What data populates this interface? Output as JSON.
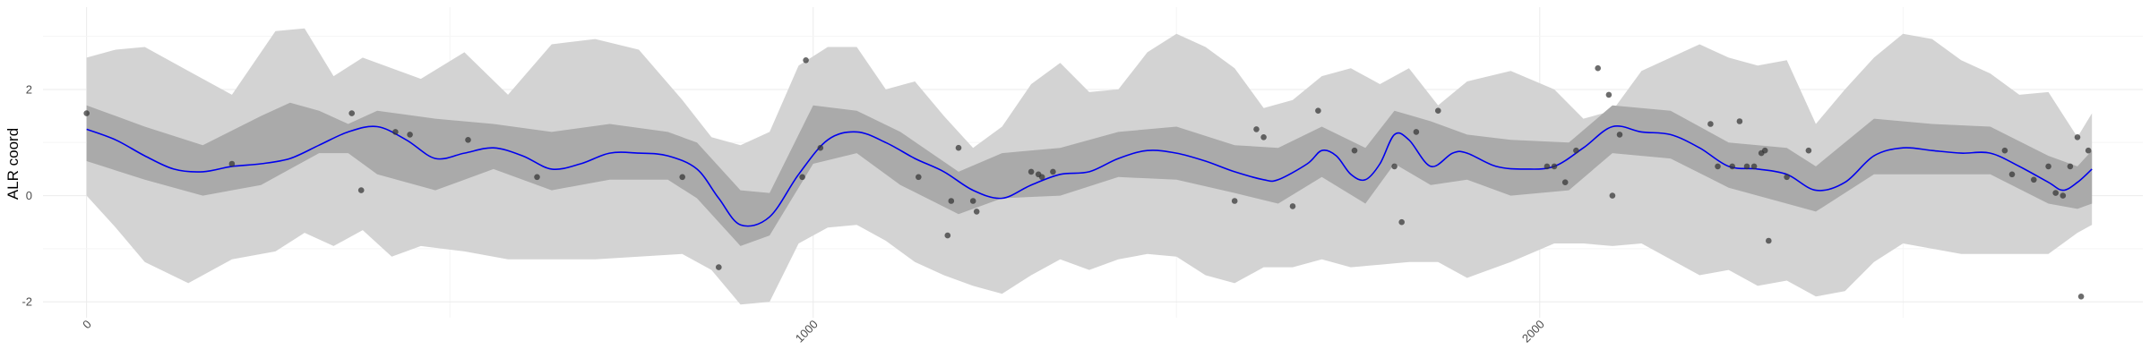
{
  "chart_data": {
    "type": "line",
    "title": "",
    "xlabel": "",
    "ylabel": "ALR coord",
    "xlim": [
      -60,
      2830
    ],
    "ylim": [
      -2.3,
      3.55
    ],
    "grid": true,
    "x_ticks": [
      0,
      1000,
      2000
    ],
    "x_tick_labels": [
      "0",
      "1000",
      "2000"
    ],
    "y_ticks": [
      -2,
      0,
      2
    ],
    "y_tick_labels": [
      "-2",
      "0",
      "2"
    ],
    "colors": {
      "mean": "#0000ee",
      "inner_band": "#aaaaaa",
      "outer_band": "#d3d3d3",
      "points": "#333333",
      "grid_major": "#ebebeb",
      "grid_minor": "#f5f5f5"
    },
    "mean_line": {
      "x": [
        0,
        40,
        80,
        120,
        160,
        200,
        240,
        280,
        320,
        360,
        400,
        440,
        480,
        520,
        560,
        600,
        640,
        680,
        720,
        760,
        800,
        840,
        870,
        900,
        940,
        980,
        1020,
        1060,
        1100,
        1140,
        1180,
        1220,
        1260,
        1300,
        1340,
        1380,
        1420,
        1460,
        1500,
        1540,
        1580,
        1620,
        1640,
        1680,
        1700,
        1720,
        1740,
        1760,
        1780,
        1800,
        1820,
        1850,
        1880,
        1900,
        1940,
        1980,
        2020,
        2060,
        2100,
        2140,
        2180,
        2220,
        2260,
        2300,
        2340,
        2380,
        2420,
        2460,
        2500,
        2540,
        2580,
        2620,
        2660,
        2700,
        2720,
        2740,
        2760
      ],
      "y": [
        1.25,
        1.05,
        0.75,
        0.5,
        0.45,
        0.55,
        0.6,
        0.7,
        0.95,
        1.2,
        1.3,
        1.05,
        0.7,
        0.8,
        0.9,
        0.75,
        0.5,
        0.6,
        0.8,
        0.8,
        0.75,
        0.5,
        -0.05,
        -0.55,
        -0.4,
        0.4,
        1.05,
        1.2,
        1.0,
        0.7,
        0.45,
        0.1,
        -0.05,
        0.2,
        0.4,
        0.45,
        0.7,
        0.85,
        0.8,
        0.65,
        0.45,
        0.3,
        0.3,
        0.6,
        0.85,
        0.75,
        0.4,
        0.3,
        0.6,
        1.15,
        1.05,
        0.55,
        0.8,
        0.8,
        0.55,
        0.5,
        0.55,
        0.9,
        1.3,
        1.2,
        1.15,
        0.9,
        0.55,
        0.5,
        0.4,
        0.1,
        0.25,
        0.75,
        0.9,
        0.85,
        0.8,
        0.8,
        0.55,
        0.25,
        0.1,
        0.25,
        0.5
      ]
    },
    "inner_band": {
      "x": [
        0,
        80,
        160,
        240,
        280,
        320,
        360,
        400,
        480,
        560,
        640,
        720,
        800,
        840,
        900,
        940,
        1000,
        1060,
        1120,
        1200,
        1260,
        1340,
        1420,
        1500,
        1580,
        1640,
        1700,
        1760,
        1800,
        1850,
        1900,
        1960,
        2040,
        2100,
        2180,
        2260,
        2340,
        2380,
        2460,
        2540,
        2620,
        2700,
        2740,
        2760
      ],
      "lower": [
        0.65,
        0.3,
        0.0,
        0.2,
        0.5,
        0.8,
        0.8,
        0.4,
        0.1,
        0.5,
        0.1,
        0.3,
        0.3,
        -0.05,
        -0.95,
        -0.75,
        0.6,
        0.8,
        0.2,
        -0.35,
        -0.05,
        0.0,
        0.35,
        0.3,
        0.05,
        -0.15,
        0.35,
        -0.15,
        0.6,
        0.2,
        0.3,
        0.0,
        0.1,
        0.8,
        0.7,
        0.15,
        -0.15,
        -0.3,
        0.4,
        0.4,
        0.4,
        -0.15,
        -0.25,
        -0.15
      ],
      "upper": [
        1.7,
        1.3,
        0.95,
        1.5,
        1.75,
        1.6,
        1.35,
        1.6,
        1.45,
        1.35,
        1.2,
        1.35,
        1.2,
        1.0,
        0.1,
        0.05,
        1.7,
        1.6,
        1.2,
        0.45,
        0.8,
        0.9,
        1.2,
        1.3,
        0.95,
        0.9,
        1.3,
        0.9,
        1.6,
        1.4,
        1.15,
        1.05,
        1.0,
        1.7,
        1.6,
        1.0,
        0.9,
        0.55,
        1.45,
        1.35,
        1.3,
        0.75,
        0.55,
        0.85
      ]
    },
    "outer_band": {
      "x": [
        0,
        40,
        80,
        140,
        200,
        260,
        300,
        340,
        380,
        420,
        460,
        520,
        580,
        640,
        700,
        760,
        820,
        860,
        900,
        940,
        980,
        1020,
        1060,
        1100,
        1140,
        1180,
        1220,
        1260,
        1300,
        1340,
        1380,
        1420,
        1460,
        1500,
        1540,
        1580,
        1620,
        1660,
        1700,
        1740,
        1780,
        1820,
        1860,
        1900,
        1960,
        2020,
        2060,
        2100,
        2140,
        2180,
        2220,
        2260,
        2300,
        2340,
        2380,
        2420,
        2460,
        2500,
        2540,
        2580,
        2620,
        2660,
        2700,
        2740,
        2760
      ],
      "lower": [
        0.0,
        -0.6,
        -1.25,
        -1.65,
        -1.2,
        -1.05,
        -0.7,
        -0.95,
        -0.65,
        -1.15,
        -0.95,
        -1.05,
        -1.2,
        -1.2,
        -1.2,
        -1.15,
        -1.1,
        -1.4,
        -2.05,
        -2.0,
        -0.9,
        -0.6,
        -0.55,
        -0.85,
        -1.25,
        -1.5,
        -1.7,
        -1.85,
        -1.5,
        -1.2,
        -1.4,
        -1.2,
        -1.1,
        -1.15,
        -1.5,
        -1.65,
        -1.35,
        -1.35,
        -1.2,
        -1.35,
        -1.3,
        -1.25,
        -1.25,
        -1.55,
        -1.25,
        -0.9,
        -0.9,
        -0.95,
        -0.9,
        -1.2,
        -1.5,
        -1.4,
        -1.7,
        -1.6,
        -1.9,
        -1.8,
        -1.25,
        -0.9,
        -1.0,
        -1.1,
        -1.1,
        -1.1,
        -1.1,
        -0.7,
        -0.55
      ],
      "upper": [
        2.6,
        2.75,
        2.8,
        2.35,
        1.9,
        3.1,
        3.15,
        2.25,
        2.6,
        2.4,
        2.2,
        2.7,
        1.9,
        2.85,
        2.95,
        2.75,
        1.8,
        1.1,
        0.95,
        1.2,
        2.45,
        2.8,
        2.8,
        2.0,
        2.15,
        1.5,
        0.9,
        1.3,
        2.1,
        2.5,
        1.95,
        2.0,
        2.7,
        3.05,
        2.8,
        2.4,
        1.65,
        1.8,
        2.25,
        2.4,
        2.1,
        2.4,
        1.7,
        2.15,
        2.35,
        2.0,
        1.45,
        1.6,
        2.35,
        2.6,
        2.85,
        2.6,
        2.45,
        2.55,
        1.35,
        2.0,
        2.6,
        3.05,
        2.95,
        2.55,
        2.3,
        1.9,
        1.95,
        1.1,
        1.55
      ]
    },
    "points": {
      "x": [
        0,
        200,
        365,
        378,
        425,
        445,
        525,
        620,
        820,
        870,
        985,
        990,
        1010,
        1145,
        1185,
        1190,
        1200,
        1220,
        1225,
        1300,
        1310,
        1315,
        1330,
        1580,
        1610,
        1620,
        1660,
        1695,
        1745,
        1800,
        1810,
        1830,
        1860,
        2010,
        2020,
        2035,
        2050,
        2080,
        2095,
        2100,
        2110,
        2235,
        2245,
        2265,
        2275,
        2285,
        2295,
        2305,
        2310,
        2315,
        2340,
        2370,
        2640,
        2650,
        2680,
        2700,
        2710,
        2720,
        2730,
        2740,
        2745,
        2755
      ],
      "y": [
        1.55,
        0.6,
        1.55,
        0.1,
        1.2,
        1.15,
        1.05,
        0.35,
        0.35,
        -1.35,
        0.35,
        2.55,
        0.9,
        0.35,
        -0.75,
        -0.1,
        0.9,
        -0.1,
        -0.3,
        0.45,
        0.4,
        0.35,
        0.45,
        -0.1,
        1.25,
        1.1,
        -0.2,
        1.6,
        0.85,
        0.55,
        -0.5,
        1.2,
        1.6,
        0.55,
        0.55,
        0.25,
        0.85,
        2.4,
        1.9,
        0.0,
        1.15,
        1.35,
        0.55,
        0.55,
        1.4,
        0.55,
        0.55,
        0.8,
        0.85,
        -0.85,
        0.35,
        0.85,
        0.85,
        0.4,
        0.3,
        0.55,
        0.05,
        0.0,
        0.55,
        1.1,
        -1.9,
        0.85
      ]
    }
  }
}
